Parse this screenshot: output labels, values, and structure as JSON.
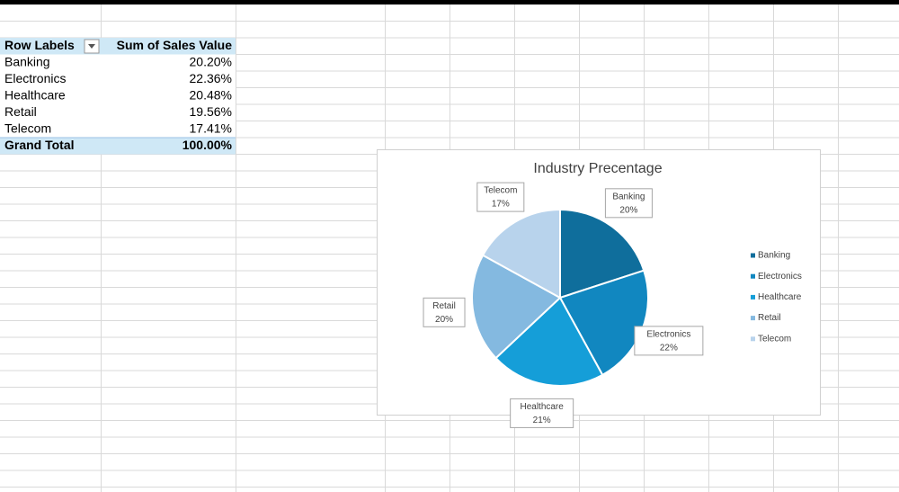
{
  "table": {
    "header": [
      "Row Labels",
      "Sum of Sales Value"
    ],
    "rows": [
      [
        "Banking",
        "20.20%"
      ],
      [
        "Electronics",
        "22.36%"
      ],
      [
        "Healthcare",
        "20.48%"
      ],
      [
        "Retail",
        "19.56%"
      ],
      [
        "Telecom",
        "17.41%"
      ]
    ],
    "total": [
      "Grand Total",
      "100.00%"
    ]
  },
  "chart_data": {
    "type": "pie",
    "title": "Industry Precentage",
    "categories": [
      "Banking",
      "Electronics",
      "Healthcare",
      "Retail",
      "Telecom"
    ],
    "values": [
      20,
      22,
      21,
      20,
      17
    ],
    "value_labels": [
      "20%",
      "22%",
      "21%",
      "20%",
      "17%"
    ],
    "colors": [
      "#0f6e9c",
      "#1187c0",
      "#159ed8",
      "#84b9e0",
      "#b8d3ec"
    ],
    "legend": "right"
  }
}
